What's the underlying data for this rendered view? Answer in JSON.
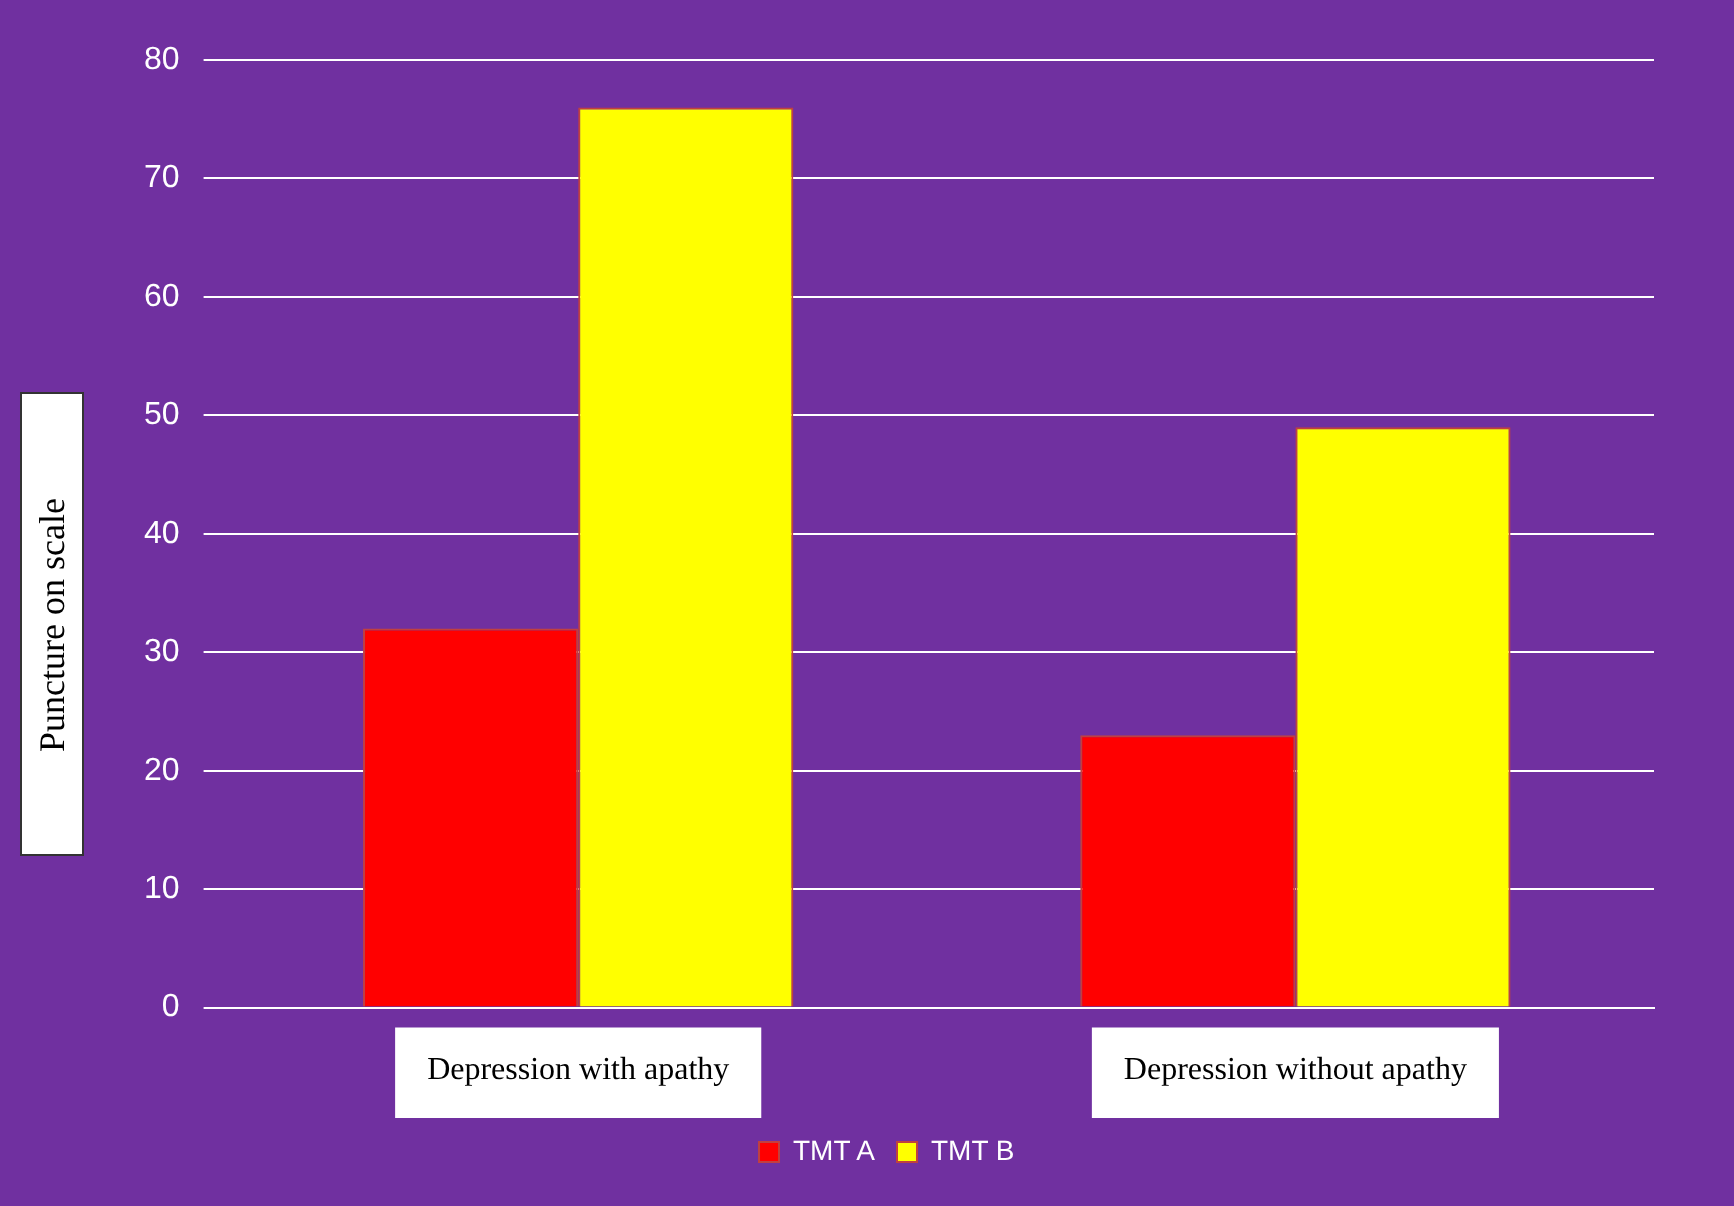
{
  "chart_data": {
    "type": "bar",
    "ylabel": "Puncture on scale",
    "categories": [
      "Depression with apathy",
      "Depression without apathy"
    ],
    "series": [
      {
        "name": "TMT A",
        "color": "#ff0000",
        "values": [
          32,
          23
        ]
      },
      {
        "name": "TMT B",
        "color": "#ffff00",
        "values": [
          76,
          49
        ]
      }
    ],
    "ylim": [
      0,
      80
    ],
    "yticks": [
      0,
      10,
      20,
      30,
      40,
      50,
      60,
      70,
      80
    ],
    "grid": "y",
    "legend": "bottom"
  }
}
